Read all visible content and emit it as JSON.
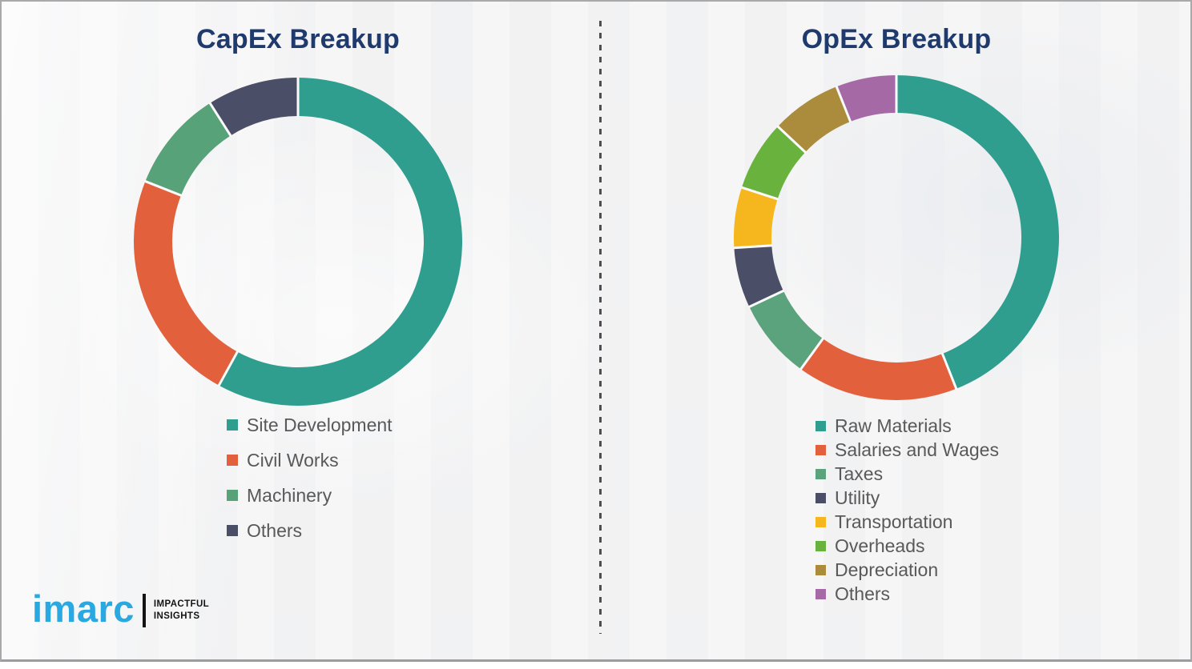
{
  "page": {
    "background_color": "#f3f3f4",
    "divider_style": "vertical-dashed",
    "divider_color": "#4e4e4e",
    "title_color": "#1f3a6d",
    "legend_text_color": "#595959"
  },
  "chart_data": [
    {
      "type": "pie",
      "subtype": "donut",
      "title": "CapEx Breakup",
      "categories": [
        "Site Development",
        "Civil Works",
        "Machinery",
        "Others"
      ],
      "values": [
        58,
        23,
        10,
        9
      ],
      "values_note": "percent share estimated from arc angles; no numeric labels shown in image",
      "colors": [
        "#2f9e8f",
        "#e2603c",
        "#57a278",
        "#4a4e66"
      ],
      "start_angle_deg": 0,
      "direction": "clockwise",
      "legend_position": "below-left"
    },
    {
      "type": "pie",
      "subtype": "donut",
      "title": "OpEx Breakup",
      "categories": [
        "Raw Materials",
        "Salaries and Wages",
        "Taxes",
        "Utility",
        "Transportation",
        "Overheads",
        "Depreciation",
        "Others"
      ],
      "values": [
        44,
        16,
        8,
        6,
        6,
        7,
        7,
        6
      ],
      "values_note": "percent share estimated from arc angles; no numeric labels shown in image",
      "colors": [
        "#2f9e8f",
        "#e2603c",
        "#5ba37c",
        "#4a4e66",
        "#f6b71e",
        "#6ab23e",
        "#ab8b3c",
        "#a569a6"
      ],
      "start_angle_deg": 0,
      "direction": "clockwise",
      "legend_position": "below-left"
    }
  ],
  "logo": {
    "brand": "imarc",
    "brand_color": "#2aa9e0",
    "tagline_line1": "IMPACTFUL",
    "tagline_line2": "INSIGHTS",
    "tagline_color": "#141414"
  }
}
